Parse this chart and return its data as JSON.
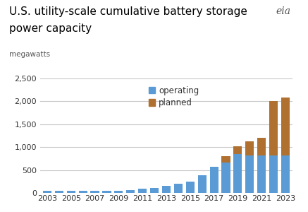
{
  "title_line1": "U.S. utility-scale cumulative battery storage",
  "title_line2": "power capacity",
  "ylabel": "megawatts",
  "years": [
    2003,
    2004,
    2005,
    2006,
    2007,
    2008,
    2009,
    2010,
    2011,
    2012,
    2013,
    2014,
    2015,
    2016,
    2017,
    2018,
    2019,
    2020,
    2021,
    2022,
    2023
  ],
  "operating": [
    50,
    50,
    50,
    50,
    50,
    50,
    50,
    55,
    90,
    110,
    150,
    200,
    240,
    380,
    570,
    670,
    850,
    820,
    820,
    820,
    820
  ],
  "planned": [
    0,
    0,
    0,
    0,
    0,
    0,
    0,
    0,
    0,
    0,
    0,
    0,
    0,
    0,
    0,
    130,
    170,
    300,
    380,
    1190,
    1260
  ],
  "operating_color": "#5b9bd5",
  "planned_color": "#b07030",
  "background_color": "#ffffff",
  "grid_color": "#c8c8c8",
  "ylim": [
    0,
    2500
  ],
  "yticks": [
    0,
    500,
    1000,
    1500,
    2000,
    2500
  ],
  "title_fontsize": 11,
  "axis_label_fontsize": 7.5,
  "tick_fontsize": 8,
  "legend_fontsize": 8.5
}
